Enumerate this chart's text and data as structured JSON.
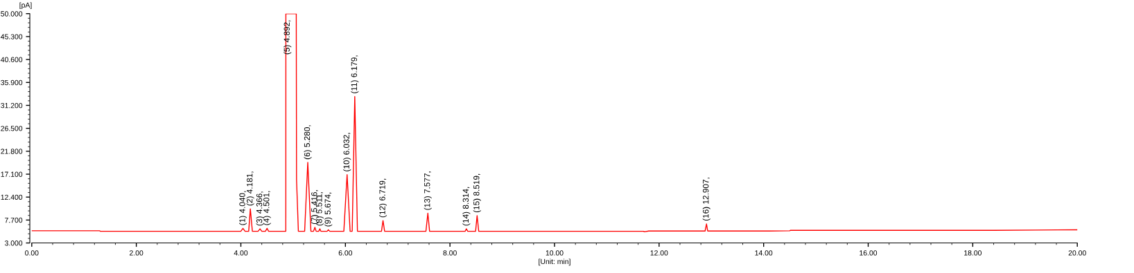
{
  "chart_data": {
    "type": "line",
    "xlabel": "[Unit: min]",
    "ylabel": "[pA]",
    "x": [
      0,
      1.3,
      1.31,
      4.0,
      4.04,
      4.08,
      4.15,
      4.181,
      4.22,
      4.33,
      4.366,
      4.4,
      4.47,
      4.501,
      4.53,
      4.86,
      4.861,
      5.06,
      5.065,
      5.1,
      5.22,
      5.28,
      5.34,
      5.39,
      5.416,
      5.44,
      5.49,
      5.511,
      5.53,
      5.65,
      5.674,
      5.7,
      5.97,
      6.032,
      6.09,
      6.13,
      6.179,
      6.23,
      6.69,
      6.719,
      6.75,
      7.54,
      7.577,
      7.61,
      8.29,
      8.314,
      8.34,
      8.49,
      8.519,
      8.55,
      11.7,
      11.72,
      11.8,
      12.88,
      12.907,
      12.93,
      14.1,
      14.5,
      14.51,
      18.4,
      19.2,
      20.0
    ],
    "series": [
      {
        "color": "#ff0000",
        "values": [
          5.5,
          5.5,
          5.4,
          5.4,
          6.0,
          5.4,
          5.4,
          10.0,
          5.4,
          5.4,
          5.9,
          5.4,
          5.4,
          6.0,
          5.4,
          5.4,
          50,
          50,
          16,
          5.4,
          5.4,
          19.5,
          5.4,
          5.4,
          6.2,
          5.4,
          5.4,
          5.9,
          5.4,
          5.4,
          5.7,
          5.4,
          5.4,
          17.0,
          5.4,
          5.4,
          33.0,
          5.4,
          5.4,
          7.6,
          5.4,
          5.4,
          9.1,
          5.4,
          5.4,
          5.9,
          5.4,
          5.4,
          8.6,
          5.4,
          5.4,
          5.3,
          5.45,
          5.45,
          6.9,
          5.45,
          5.45,
          5.5,
          5.6,
          5.6,
          5.65,
          5.7
        ]
      }
    ],
    "xlim": [
      0,
      20
    ],
    "ylim": [
      3,
      50
    ],
    "xticks": [
      {
        "value": 0,
        "label": "0.00"
      },
      {
        "value": 2,
        "label": "2.00"
      },
      {
        "value": 4,
        "label": "4.00"
      },
      {
        "value": 6,
        "label": "6.00"
      },
      {
        "value": 8,
        "label": "8.00"
      },
      {
        "value": 10,
        "label": "10.00"
      },
      {
        "value": 12,
        "label": "12.00"
      },
      {
        "value": 14,
        "label": "14.00"
      },
      {
        "value": 16,
        "label": "16.00"
      },
      {
        "value": 18,
        "label": "18.00"
      },
      {
        "value": 20,
        "label": "20.00"
      }
    ],
    "yticks": [
      {
        "value": 3,
        "label": "3.000"
      },
      {
        "value": 7.7,
        "label": "7.700"
      },
      {
        "value": 12.4,
        "label": "12.400"
      },
      {
        "value": 17.1,
        "label": "17.100"
      },
      {
        "value": 21.8,
        "label": "21.800"
      },
      {
        "value": 26.5,
        "label": "26.500"
      },
      {
        "value": 31.2,
        "label": "31.200"
      },
      {
        "value": 35.9,
        "label": "35.900"
      },
      {
        "value": 40.6,
        "label": "40.600"
      },
      {
        "value": 45.3,
        "label": "45.300"
      },
      {
        "value": 50,
        "label": "50.000"
      }
    ],
    "grid": false,
    "legend": false,
    "marker": "none",
    "line_style": "solid",
    "annotations": [
      {
        "text": "(1) 4.040,",
        "x": 4.04,
        "y": 6.0
      },
      {
        "text": "(2) 4.181,",
        "x": 4.181,
        "y": 10.0
      },
      {
        "text": "(3) 4.366,",
        "x": 4.366,
        "y": 5.9
      },
      {
        "text": "(4) 4.501,",
        "x": 4.501,
        "y": 6.0
      },
      {
        "text": "(5) 4.892,",
        "x": 4.892,
        "y": 41
      },
      {
        "text": "(6) 5.280,",
        "x": 5.28,
        "y": 19.5
      },
      {
        "text": "(7) 5.416,",
        "x": 5.416,
        "y": 6.2
      },
      {
        "text": "(8) 5.511,",
        "x": 5.511,
        "y": 5.9
      },
      {
        "text": "(9) 5.674,",
        "x": 5.674,
        "y": 5.7
      },
      {
        "text": "(10) 6.032,",
        "x": 6.032,
        "y": 17.0
      },
      {
        "text": "(11) 6.179,",
        "x": 6.179,
        "y": 33.0
      },
      {
        "text": "(12) 6.719,",
        "x": 6.719,
        "y": 7.6
      },
      {
        "text": "(13) 7.577,",
        "x": 7.577,
        "y": 9.1
      },
      {
        "text": "(14) 8.314,",
        "x": 8.314,
        "y": 5.9
      },
      {
        "text": "(15) 8.519,",
        "x": 8.519,
        "y": 8.6
      },
      {
        "text": "(16) 12.907,",
        "x": 12.907,
        "y": 6.9
      }
    ]
  }
}
